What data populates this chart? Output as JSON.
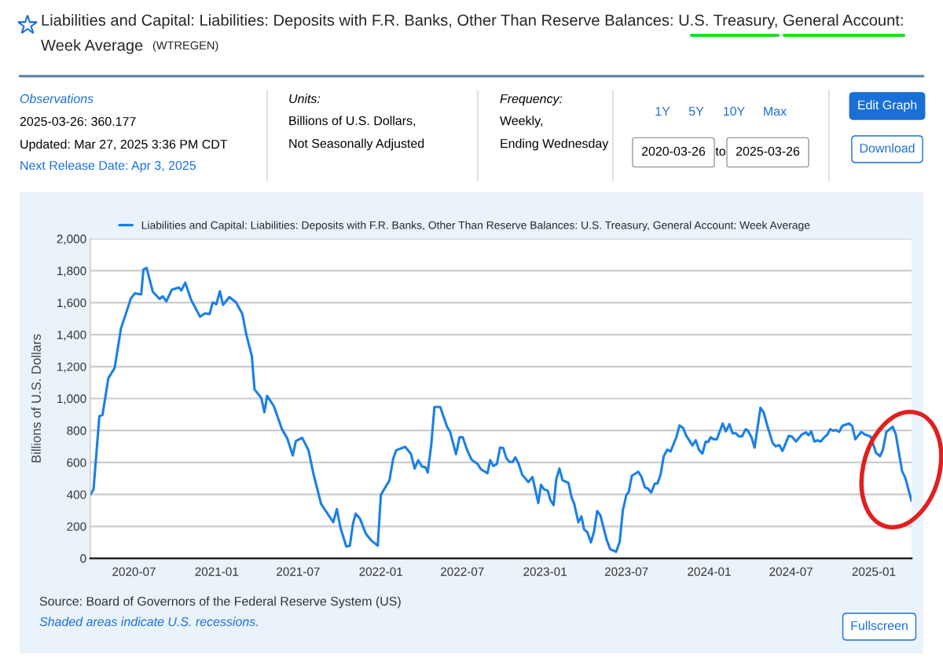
{
  "chart_data": {
    "type": "line",
    "title": "Liabilities and Capital: Liabilities: Deposits with F.R. Banks, Other Than Reserve Balances: U.S. Treasury, General Account: Week Average",
    "subtitle": "(WTREGEN)",
    "ylabel": "Billions of U.S. Dollars",
    "x": [
      "2020-03-26",
      "2020-04-02",
      "2020-04-15",
      "2020-04-22",
      "2020-05-05",
      "2020-05-19",
      "2020-06-02",
      "2020-06-24",
      "2020-07-03",
      "2020-07-17",
      "2020-07-22",
      "2020-07-29",
      "2020-08-12",
      "2020-08-27",
      "2020-09-03",
      "2020-09-11",
      "2020-09-23",
      "2020-10-09",
      "2020-10-14",
      "2020-10-23",
      "2020-11-05",
      "2020-11-25",
      "2020-12-06",
      "2020-12-16",
      "2020-12-23",
      "2020-12-31",
      "2021-01-08",
      "2021-01-15",
      "2021-01-29",
      "2021-02-13",
      "2021-02-27",
      "2021-03-08",
      "2021-03-20",
      "2021-03-26",
      "2021-04-10",
      "2021-04-17",
      "2021-04-23",
      "2021-05-08",
      "2021-05-26",
      "2021-06-07",
      "2021-06-19",
      "2021-06-26",
      "2021-07-10",
      "2021-07-24",
      "2021-08-04",
      "2021-08-21",
      "2021-09-17",
      "2021-09-25",
      "2021-10-03",
      "2021-10-16",
      "2021-10-24",
      "2021-10-31",
      "2021-11-06",
      "2021-11-15",
      "2021-11-29",
      "2021-12-11",
      "2021-12-25",
      "2022-01-01",
      "2022-01-13",
      "2022-01-20",
      "2022-01-28",
      "2022-02-04",
      "2022-02-24",
      "2022-03-09",
      "2022-03-17",
      "2022-03-25",
      "2022-04-02",
      "2022-04-10",
      "2022-04-15",
      "2022-04-23",
      "2022-04-30",
      "2022-05-13",
      "2022-05-28",
      "2022-06-04",
      "2022-06-17",
      "2022-06-25",
      "2022-07-02",
      "2022-07-12",
      "2022-07-22",
      "2022-08-04",
      "2022-08-11",
      "2022-08-26",
      "2022-09-01",
      "2022-09-08",
      "2022-09-16",
      "2022-09-23",
      "2022-09-30",
      "2022-10-07",
      "2022-10-14",
      "2022-10-21",
      "2022-10-27",
      "2022-11-03",
      "2022-11-11",
      "2022-11-25",
      "2022-12-04",
      "2022-12-17",
      "2022-12-23",
      "2022-12-30",
      "2023-01-07",
      "2023-01-13",
      "2023-01-20",
      "2023-01-26",
      "2023-02-02",
      "2023-02-09",
      "2023-02-22",
      "2023-03-01",
      "2023-03-07",
      "2023-03-16",
      "2023-03-23",
      "2023-03-29",
      "2023-04-05",
      "2023-04-13",
      "2023-04-20",
      "2023-04-27",
      "2023-05-04",
      "2023-05-18",
      "2023-05-26",
      "2023-06-08",
      "2023-06-16",
      "2023-06-23",
      "2023-07-01",
      "2023-07-06",
      "2023-07-13",
      "2023-07-27",
      "2023-08-03",
      "2023-08-11",
      "2023-08-18",
      "2023-08-25",
      "2023-09-02",
      "2023-09-08",
      "2023-09-15",
      "2023-09-22",
      "2023-09-30",
      "2023-10-07",
      "2023-10-20",
      "2023-10-27",
      "2023-11-04",
      "2023-11-11",
      "2023-11-25",
      "2023-12-02",
      "2023-12-09",
      "2023-12-17",
      "2023-12-24",
      "2023-12-30",
      "2024-01-04",
      "2024-01-11",
      "2024-01-18",
      "2024-01-31",
      "2024-02-07",
      "2024-02-15",
      "2024-02-22",
      "2024-02-29",
      "2024-03-07",
      "2024-03-14",
      "2024-03-22",
      "2024-03-27",
      "2024-04-04",
      "2024-04-11",
      "2024-04-24",
      "2024-05-01",
      "2024-05-10",
      "2024-05-21",
      "2024-05-28",
      "2024-06-05",
      "2024-06-12",
      "2024-06-26",
      "2024-07-03",
      "2024-07-12",
      "2024-07-25",
      "2024-08-03",
      "2024-08-09",
      "2024-08-15",
      "2024-08-22",
      "2024-08-29",
      "2024-09-05",
      "2024-09-13",
      "2024-09-20",
      "2024-09-26",
      "2024-10-03",
      "2024-10-09",
      "2024-10-16",
      "2024-10-23",
      "2024-11-07",
      "2024-11-14",
      "2024-11-21",
      "2024-12-04",
      "2024-12-12",
      "2024-12-25",
      "2025-01-06",
      "2025-01-15",
      "2025-01-21",
      "2025-01-29",
      "2025-02-12",
      "2025-02-19",
      "2025-03-05",
      "2025-03-12",
      "2025-03-26"
    ],
    "series": [
      {
        "name": "Liabilities and Capital: Liabilities: Deposits with F.R. Banks, Other Than Reserve Balances: U.S. Treasury, General Account: Week Average",
        "color": "#1a7fe6",
        "values": [
          398,
          431,
          889,
          898,
          1127,
          1192,
          1438,
          1626,
          1659,
          1651,
          1807,
          1818,
          1667,
          1623,
          1640,
          1607,
          1681,
          1695,
          1676,
          1725,
          1618,
          1512,
          1533,
          1528,
          1602,
          1590,
          1672,
          1586,
          1635,
          1602,
          1528,
          1397,
          1266,
          1057,
          1004,
          914,
          1017,
          952,
          808,
          750,
          644,
          734,
          755,
          676,
          529,
          341,
          226,
          308,
          193,
          74,
          79,
          218,
          280,
          251,
          152,
          111,
          79,
          398,
          455,
          488,
          619,
          676,
          698,
          652,
          562,
          614,
          575,
          570,
          537,
          709,
          947,
          947,
          824,
          791,
          652,
          758,
          758,
          676,
          616,
          591,
          559,
          532,
          614,
          578,
          591,
          693,
          690,
          627,
          603,
          603,
          632,
          595,
          524,
          477,
          509,
          346,
          460,
          431,
          423,
          365,
          333,
          496,
          562,
          488,
          472,
          382,
          341,
          226,
          262,
          180,
          165,
          100,
          169,
          296,
          270,
          116,
          57,
          41,
          103,
          300,
          398,
          414,
          516,
          542,
          513,
          444,
          436,
          411,
          468,
          468,
          526,
          640,
          680,
          668,
          758,
          832,
          816,
          767,
          706,
          739,
          680,
          655,
          729,
          729,
          758,
          745,
          745,
          844,
          794,
          840,
          783,
          783,
          763,
          763,
          808,
          799,
          758,
          693,
          942,
          914,
          824,
          722,
          701,
          709,
          672,
          767,
          762,
          731,
          775,
          788,
          771,
          794,
          731,
          739,
          731,
          758,
          775,
          808,
          799,
          803,
          791,
          829,
          844,
          827,
          745,
          791,
          775,
          762,
          660,
          639,
          677,
          791,
          824,
          775,
          545,
          504,
          360
        ]
      }
    ],
    "xlim": [
      "2020-03-26",
      "2025-03-26"
    ],
    "xticks": [
      {
        "value": "2020-07-01",
        "label": "2020-07"
      },
      {
        "value": "2021-01-01",
        "label": "2021-01"
      },
      {
        "value": "2021-07-01",
        "label": "2021-07"
      },
      {
        "value": "2022-01-01",
        "label": "2022-01"
      },
      {
        "value": "2022-07-01",
        "label": "2022-07"
      },
      {
        "value": "2023-01-01",
        "label": "2023-01"
      },
      {
        "value": "2023-07-01",
        "label": "2023-07"
      },
      {
        "value": "2024-01-01",
        "label": "2024-01"
      },
      {
        "value": "2024-07-01",
        "label": "2024-07"
      },
      {
        "value": "2025-01-01",
        "label": "2025-01"
      }
    ],
    "ylim": [
      0,
      2000
    ],
    "yticks": [
      0,
      200,
      400,
      600,
      800,
      {
        "value": 1000,
        "label": "1,000"
      },
      {
        "value": 1200,
        "label": "1,200"
      },
      {
        "value": 1400,
        "label": "1,400"
      },
      {
        "value": 1600,
        "label": "1,600"
      },
      {
        "value": 1800,
        "label": "1,800"
      },
      {
        "value": 2000,
        "label": "2,000"
      }
    ],
    "grid": "y",
    "legend": "top",
    "marker": "none",
    "line_style": "solid",
    "annotations": [
      "Observations",
      "2025-03-26: 360.177",
      "Updated: Mar 27, 2025 3:36 PM CDT",
      "Next Release Date: Apr 3, 2025",
      "Units:",
      "Billions of U.S. Dollars,",
      "Not Seasonally Adjusted",
      "Frequency:",
      "Weekly,",
      "Ending Wednesday",
      "1Y",
      "5Y",
      "10Y",
      "Max",
      "2020-03-26",
      "to",
      "2025-03-26",
      "Edit Graph",
      "Download",
      "Source: Board of Governors of the Federal Reserve System (US)",
      "Shaded areas indicate U.S. recessions.",
      "Fullscreen"
    ]
  }
}
